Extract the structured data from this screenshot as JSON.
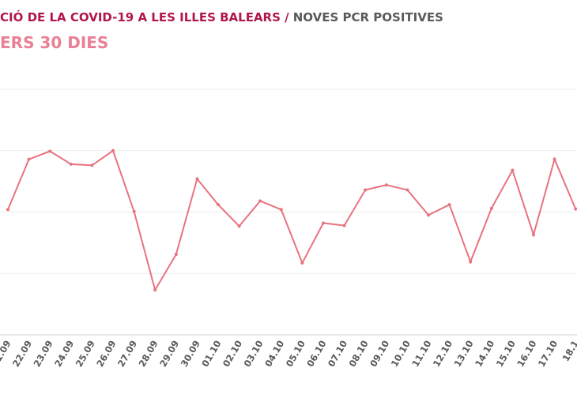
{
  "chart_data": {
    "type": "line",
    "title": "CIÓ DE LA COVID-19 A LES ILLES BALEARS /",
    "title_suffix": "NOVES PCR POSITIVES",
    "subtitle": "ERS 30 DIES",
    "categories": [
      "1.09",
      "22.09",
      "23.09",
      "24.09",
      "25.09",
      "26.09",
      "27.09",
      "28.09",
      "29.09",
      "30.09",
      "01.10",
      "02.10",
      "03.10",
      "04.10",
      "05.10",
      "06.10",
      "07.10",
      "08.10",
      "09.10",
      "10.10",
      "11.10",
      "12.10",
      "13.10",
      "14.10",
      "15.10",
      "16.10",
      "17.10",
      "18.1"
    ],
    "series": [
      {
        "name": "NOVES PCR POSITIVES",
        "color": "#e8737f",
        "values": [
          2.04,
          2.86,
          2.99,
          2.78,
          2.76,
          3.0,
          2.01,
          0.73,
          1.31,
          2.54,
          2.12,
          1.77,
          2.18,
          2.04,
          1.17,
          1.82,
          1.78,
          2.36,
          2.44,
          2.36,
          1.95,
          2.12,
          1.19,
          2.06,
          2.68,
          1.63,
          2.86,
          2.05
        ]
      }
    ],
    "ylim": [
      0,
      4
    ],
    "yticks": [
      0,
      1,
      2,
      3,
      4
    ],
    "grid": true
  }
}
